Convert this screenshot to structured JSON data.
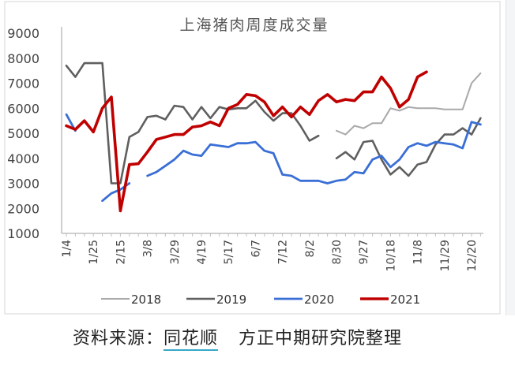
{
  "chart_data": {
    "type": "line",
    "title": "上海猪肉周度成交量",
    "xlabel": "",
    "ylabel": "",
    "ylim": [
      1000,
      9000
    ],
    "yticks": [
      1000,
      2000,
      3000,
      4000,
      5000,
      6000,
      7000,
      8000,
      9000
    ],
    "grid": false,
    "legend_position": "bottom",
    "x_tick_labels": [
      "1/4",
      "1/25",
      "2/15",
      "3/8",
      "3/29",
      "4/19",
      "5/17",
      "6/7",
      "7/12",
      "8/2",
      "8/30",
      "9/27",
      "10/18",
      "11/8",
      "11/29",
      "12/20"
    ],
    "x_tick_every": 3,
    "num_weeks": 47,
    "series": [
      {
        "name": "2018",
        "color": "#a9a9a9",
        "values": [
          null,
          null,
          null,
          null,
          null,
          null,
          null,
          null,
          null,
          null,
          null,
          null,
          null,
          null,
          null,
          null,
          null,
          null,
          null,
          null,
          null,
          null,
          null,
          null,
          null,
          null,
          null,
          null,
          null,
          null,
          5100,
          4950,
          5300,
          5200,
          5400,
          5400,
          6000,
          5900,
          6050,
          6000,
          6000,
          6000,
          5950,
          5950,
          5950,
          7000,
          7400
        ]
      },
      {
        "name": "2019",
        "color": "#5f5f5f",
        "values": [
          7700,
          7250,
          7800,
          7800,
          7800,
          3000,
          3000,
          4850,
          5050,
          5650,
          5700,
          5550,
          6100,
          6050,
          5550,
          6050,
          5600,
          6050,
          5950,
          6000,
          6000,
          6300,
          5850,
          5500,
          5800,
          5800,
          5300,
          4700,
          4900,
          null,
          4000,
          4250,
          3950,
          4650,
          4700,
          3950,
          3350,
          3650,
          3300,
          3750,
          3850,
          4550,
          4950,
          4950,
          5200,
          4950,
          5600
        ]
      },
      {
        "name": "2020",
        "color": "#3a6fd6",
        "values": [
          5750,
          5100,
          null,
          null,
          2300,
          2600,
          2750,
          3000,
          null,
          3300,
          3450,
          3700,
          3950,
          4300,
          4150,
          4100,
          4550,
          4500,
          4450,
          4600,
          4600,
          4650,
          4300,
          4200,
          3350,
          3300,
          3100,
          3100,
          3100,
          3000,
          3100,
          3150,
          3450,
          3400,
          3950,
          4100,
          3650,
          3950,
          4450,
          4600,
          4500,
          4650,
          4600,
          4550,
          4400,
          5450,
          5350
        ]
      },
      {
        "name": "2021",
        "color": "#c00000",
        "values": [
          5300,
          5150,
          5500,
          5050,
          6000,
          6450,
          1900,
          3750,
          3780,
          4250,
          4750,
          4850,
          4950,
          4950,
          5250,
          5300,
          5450,
          5300,
          6000,
          6150,
          6550,
          6500,
          6250,
          5700,
          6050,
          5650,
          6050,
          5750,
          6300,
          6550,
          6250,
          6350,
          6300,
          6650,
          6650,
          7250,
          6800,
          6050,
          6350,
          7250,
          7450
        ]
      }
    ]
  },
  "footer": {
    "prefix": "资料来源：",
    "source": "同花顺",
    "org": "方正中期研究院整理"
  }
}
